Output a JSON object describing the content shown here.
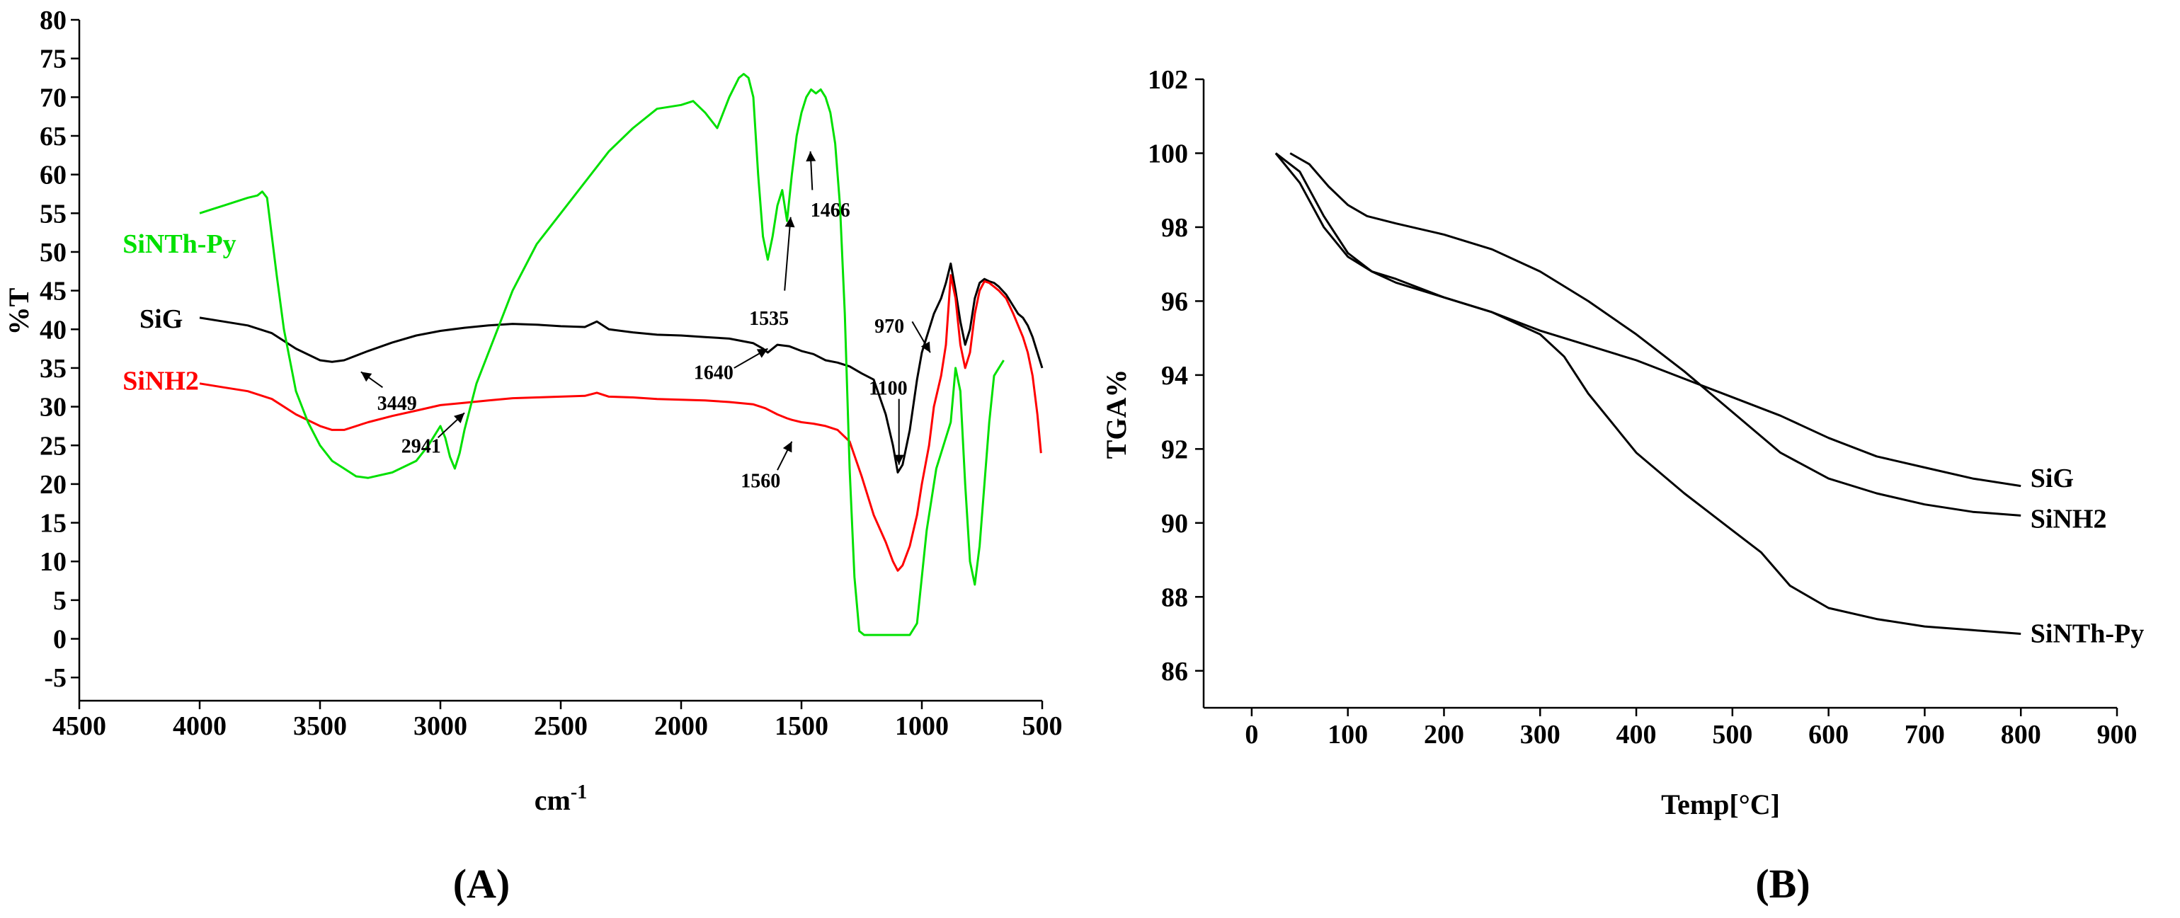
{
  "colors": {
    "SiG": "#000000",
    "SiNH2": "#ff0000",
    "SiNTh-Py": "#00e000",
    "axis": "#000000"
  },
  "chart_data": [
    {
      "panel": "A",
      "panel_label": "(A)",
      "type": "line",
      "title": "",
      "xlabel": "cm",
      "xlabel_sup": "-1",
      "ylabel": "%T",
      "xlim": [
        4500,
        500
      ],
      "ylim": [
        -8,
        80
      ],
      "xticks": [
        4500,
        4000,
        3500,
        3000,
        2500,
        2000,
        1500,
        1000,
        500
      ],
      "yticks": [
        80,
        75,
        70,
        65,
        60,
        55,
        50,
        45,
        40,
        35,
        30,
        25,
        20,
        15,
        10,
        5,
        0,
        -5
      ],
      "series": [
        {
          "name": "SiG",
          "color": "#000000",
          "x": [
            4000,
            3900,
            3800,
            3700,
            3600,
            3500,
            3450,
            3400,
            3300,
            3200,
            3100,
            3000,
            2900,
            2800,
            2700,
            2600,
            2500,
            2400,
            2350,
            2300,
            2200,
            2100,
            2000,
            1900,
            1800,
            1700,
            1660,
            1640,
            1600,
            1550,
            1500,
            1450,
            1400,
            1350,
            1300,
            1250,
            1200,
            1150,
            1120,
            1100,
            1080,
            1050,
            1020,
            1000,
            970,
            950,
            920,
            900,
            880,
            860,
            840,
            820,
            800,
            780,
            760,
            740,
            720,
            700,
            680,
            650,
            620,
            600,
            580,
            560,
            540,
            520,
            500
          ],
          "y": [
            41.5,
            41,
            40.5,
            39.5,
            37.5,
            36,
            35.8,
            36,
            37.2,
            38.3,
            39.2,
            39.8,
            40.2,
            40.5,
            40.7,
            40.6,
            40.4,
            40.3,
            41,
            40,
            39.6,
            39.3,
            39.2,
            39,
            38.8,
            38.2,
            37.5,
            37,
            38,
            37.8,
            37.2,
            36.8,
            36,
            35.7,
            35.2,
            34.3,
            33.5,
            29,
            25,
            21.5,
            22.5,
            27,
            33.5,
            37,
            40,
            42,
            44,
            46,
            48.5,
            45,
            41,
            38,
            40,
            44,
            46,
            46.5,
            46.2,
            46,
            45.5,
            44.5,
            43,
            42,
            41.5,
            40.5,
            39,
            37,
            35
          ]
        },
        {
          "name": "SiNH2",
          "color": "#ff0000",
          "x": [
            4000,
            3900,
            3800,
            3700,
            3600,
            3500,
            3450,
            3400,
            3300,
            3200,
            3100,
            3000,
            2900,
            2800,
            2700,
            2600,
            2500,
            2400,
            2350,
            2300,
            2200,
            2100,
            2000,
            1900,
            1800,
            1700,
            1650,
            1600,
            1560,
            1540,
            1500,
            1450,
            1400,
            1350,
            1300,
            1250,
            1200,
            1150,
            1120,
            1100,
            1080,
            1050,
            1020,
            1000,
            970,
            950,
            920,
            900,
            880,
            860,
            840,
            820,
            800,
            780,
            760,
            740,
            720,
            700,
            680,
            650,
            620,
            600,
            580,
            560,
            540,
            520,
            505
          ],
          "y": [
            33,
            32.5,
            32,
            31,
            29,
            27.5,
            27,
            27,
            28,
            28.8,
            29.5,
            30.2,
            30.5,
            30.8,
            31.1,
            31.2,
            31.3,
            31.4,
            31.8,
            31.3,
            31.2,
            31,
            30.9,
            30.8,
            30.6,
            30.3,
            29.8,
            29,
            28.5,
            28.3,
            28,
            27.8,
            27.5,
            27,
            25.5,
            21,
            16,
            12.5,
            10,
            8.8,
            9.5,
            12,
            16,
            20,
            25,
            30,
            34,
            38,
            47,
            44,
            38,
            35,
            37,
            42,
            45,
            46.2,
            46,
            45.5,
            45,
            44,
            42,
            40.5,
            39,
            37,
            34,
            29,
            24
          ]
        },
        {
          "name": "SiNTh-Py",
          "color": "#00e000",
          "x": [
            4000,
            3950,
            3900,
            3850,
            3800,
            3760,
            3740,
            3720,
            3700,
            3680,
            3650,
            3600,
            3550,
            3500,
            3450,
            3400,
            3350,
            3300,
            3200,
            3100,
            3050,
            3000,
            2980,
            2960,
            2940,
            2920,
            2900,
            2850,
            2800,
            2700,
            2600,
            2500,
            2400,
            2300,
            2200,
            2100,
            2000,
            1950,
            1900,
            1850,
            1800,
            1760,
            1740,
            1720,
            1700,
            1680,
            1660,
            1640,
            1620,
            1600,
            1580,
            1560,
            1540,
            1520,
            1500,
            1480,
            1460,
            1440,
            1420,
            1400,
            1380,
            1360,
            1340,
            1320,
            1300,
            1280,
            1260,
            1240,
            1220,
            1200,
            1100,
            1050,
            1020,
            1000,
            980,
            960,
            940,
            920,
            900,
            880,
            860,
            840,
            820,
            800,
            780,
            760,
            740,
            720,
            700,
            680,
            660
          ],
          "y": [
            55,
            55.5,
            56,
            56.5,
            57,
            57.3,
            57.8,
            57,
            52,
            47,
            40,
            32,
            28,
            25,
            23,
            22,
            21,
            20.8,
            21.5,
            23,
            25,
            27.5,
            26,
            23.5,
            22,
            24,
            27,
            33,
            37,
            45,
            51,
            55,
            59,
            63,
            66,
            68.5,
            69,
            69.5,
            68,
            66,
            70,
            72.5,
            73,
            72.5,
            70,
            60,
            52,
            49,
            52,
            56,
            58,
            54,
            60,
            65,
            68,
            70,
            71,
            70.5,
            71,
            70,
            68,
            64,
            56,
            42,
            22,
            8,
            1,
            0.5,
            0.5,
            0.5,
            0.5,
            0.5,
            2,
            8,
            14,
            18,
            22,
            24,
            26,
            28,
            35,
            32,
            20,
            10,
            7,
            12,
            20,
            28,
            34,
            35,
            36
          ]
        }
      ],
      "legend": [
        {
          "text": "SiNTh-Py",
          "series": "SiNTh-Py",
          "at": [
            4320,
            51
          ]
        },
        {
          "text": "SiG",
          "series": "SiG",
          "at": [
            4250,
            41.3
          ]
        },
        {
          "text": "SiNH2",
          "series": "SiNH2",
          "at": [
            4320,
            33.3
          ]
        }
      ],
      "annotations": [
        {
          "text": "3449",
          "label_at": [
            3180,
            30.5
          ],
          "arrow_from": [
            3240,
            32.5
          ],
          "arrow_to": [
            3330,
            34.5
          ]
        },
        {
          "text": "2941",
          "label_at": [
            3080,
            25
          ],
          "arrow_from": [
            3010,
            26
          ],
          "arrow_to": [
            2900,
            29.2
          ]
        },
        {
          "text": "1640",
          "label_at": [
            1865,
            34.5
          ],
          "arrow_from": [
            1780,
            35
          ],
          "arrow_to": [
            1640,
            37.5
          ]
        },
        {
          "text": "1560",
          "label_at": [
            1670,
            20.5
          ],
          "arrow_from": [
            1600,
            21.8
          ],
          "arrow_to": [
            1540,
            25.5
          ]
        },
        {
          "text": "1535",
          "label_at": [
            1635,
            41.5
          ],
          "arrow_from": [
            1570,
            45
          ],
          "arrow_to": [
            1545,
            54.5
          ]
        },
        {
          "text": "1466",
          "label_at": [
            1380,
            55.5
          ],
          "arrow_from": [
            1455,
            58
          ],
          "arrow_to": [
            1463,
            63
          ]
        },
        {
          "text": "970",
          "label_at": [
            1135,
            40.5
          ],
          "arrow_from": [
            1040,
            41
          ],
          "arrow_to": [
            965,
            37
          ]
        },
        {
          "text": "1100",
          "label_at": [
            1140,
            32.5
          ],
          "arrow_from": [
            1095,
            31
          ],
          "arrow_to": [
            1095,
            22.5
          ]
        }
      ]
    },
    {
      "panel": "B",
      "panel_label": "(B)",
      "type": "line",
      "title": "",
      "xlabel": "Temp[°C]",
      "ylabel": "TGA%",
      "xlim": [
        -50,
        900
      ],
      "ylim": [
        85,
        102
      ],
      "xticks": [
        0,
        100,
        200,
        300,
        400,
        500,
        600,
        700,
        800,
        900
      ],
      "yticks": [
        102,
        100,
        98,
        96,
        94,
        92,
        90,
        88,
        86
      ],
      "series": [
        {
          "name": "SiG",
          "color": "#000000",
          "x": [
            25,
            50,
            75,
            100,
            125,
            150,
            200,
            250,
            300,
            350,
            400,
            450,
            500,
            550,
            600,
            650,
            700,
            750,
            800
          ],
          "y": [
            100,
            99.5,
            98.3,
            97.3,
            96.8,
            96.5,
            96.1,
            95.7,
            95.2,
            94.8,
            94.4,
            93.9,
            93.4,
            92.9,
            92.3,
            91.8,
            91.5,
            91.2,
            91.0
          ]
        },
        {
          "name": "SiNH2",
          "color": "#000000",
          "x": [
            40,
            60,
            80,
            100,
            120,
            150,
            200,
            250,
            300,
            350,
            400,
            450,
            500,
            550,
            600,
            650,
            700,
            750,
            800
          ],
          "y": [
            100,
            99.7,
            99.1,
            98.6,
            98.3,
            98.1,
            97.8,
            97.4,
            96.8,
            96.0,
            95.1,
            94.1,
            93.0,
            91.9,
            91.2,
            90.8,
            90.5,
            90.3,
            90.2
          ]
        },
        {
          "name": "SiNTh-Py",
          "color": "#000000",
          "x": [
            25,
            50,
            75,
            100,
            125,
            150,
            200,
            250,
            300,
            325,
            350,
            400,
            450,
            500,
            530,
            560,
            600,
            650,
            700,
            750,
            800
          ],
          "y": [
            100,
            99.2,
            98.0,
            97.2,
            96.8,
            96.6,
            96.1,
            95.7,
            95.1,
            94.5,
            93.5,
            91.9,
            90.8,
            89.8,
            89.2,
            88.3,
            87.7,
            87.4,
            87.2,
            87.1,
            87.0
          ]
        }
      ],
      "legend": [
        {
          "text": "SiG",
          "series": "SiG",
          "at": [
            810,
            91.2
          ]
        },
        {
          "text": "SiNH2",
          "series": "SiNH2",
          "at": [
            810,
            90.1
          ]
        },
        {
          "text": "SiNTh-Py",
          "series": "SiNTh-Py",
          "at": [
            810,
            87.0
          ]
        }
      ],
      "annotations": []
    }
  ]
}
